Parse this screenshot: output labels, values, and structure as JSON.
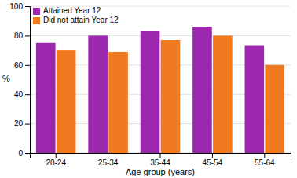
{
  "chart_data": {
    "type": "bar",
    "categories": [
      "20-24",
      "25-34",
      "35-44",
      "45-54",
      "55-64"
    ],
    "series": [
      {
        "name": "Attained Year 12",
        "color": "#9B27AF",
        "values": [
          75,
          80,
          83,
          86,
          73
        ]
      },
      {
        "name": "Did not attain Year 12",
        "color": "#F07A20",
        "values": [
          70,
          69,
          77,
          80,
          60
        ]
      }
    ],
    "xlabel": "Age group (years)",
    "ylabel": "%",
    "ylim": [
      0,
      100
    ],
    "yticks": [
      0,
      20,
      40,
      60,
      80,
      100
    ],
    "grid": true,
    "legend": "upper left"
  }
}
